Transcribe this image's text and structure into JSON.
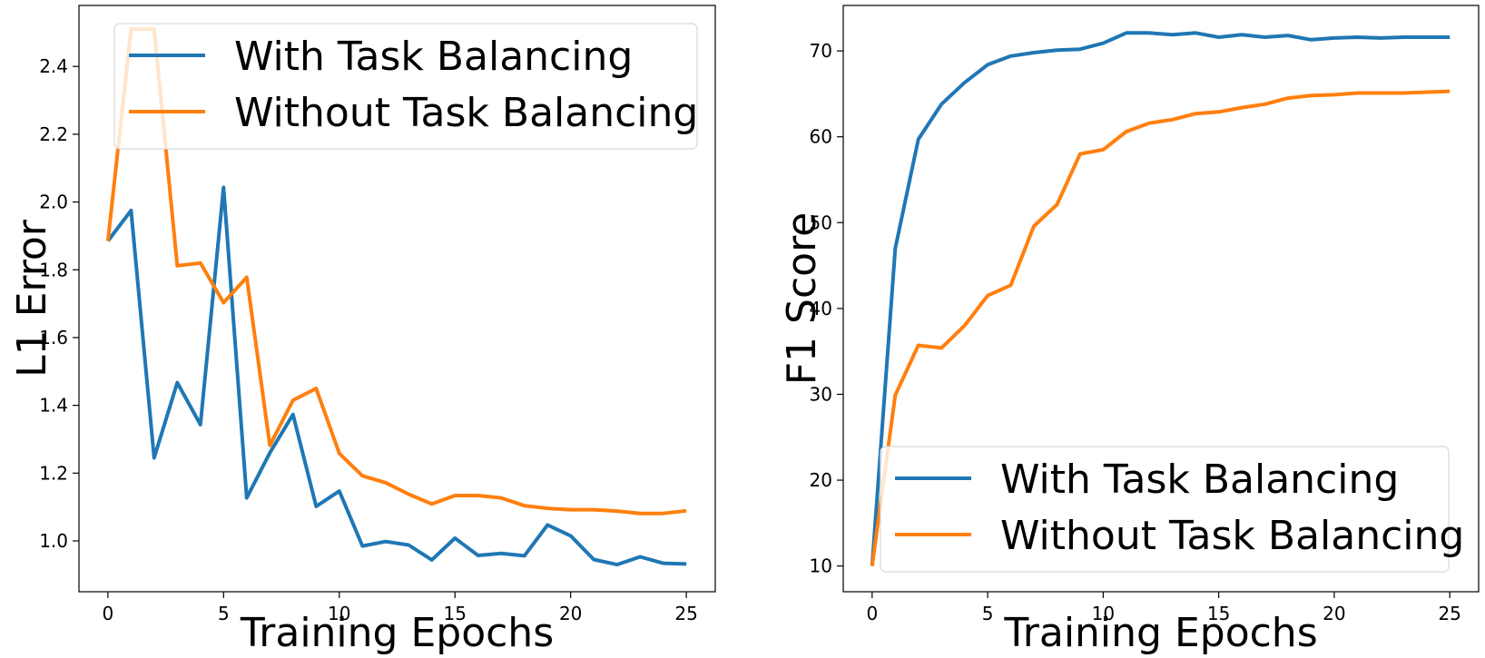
{
  "chart_data": [
    {
      "type": "line",
      "xlabel": "Training Epochs",
      "ylabel": "L1 Error",
      "xlim": [
        -1.25,
        26.25
      ],
      "ylim": [
        0.85,
        2.58
      ],
      "xticks": [
        0,
        5,
        10,
        15,
        20,
        25
      ],
      "yticks": [
        1.0,
        1.2,
        1.4,
        1.6,
        1.8,
        2.0,
        2.2,
        2.4
      ],
      "ytick_labels": [
        "1.0",
        "1.2",
        "1.4",
        "1.6",
        "1.8",
        "2.0",
        "2.2",
        "2.4"
      ],
      "grid": false,
      "legend_position": "top",
      "x": [
        0,
        1,
        2,
        3,
        4,
        5,
        6,
        7,
        8,
        9,
        10,
        11,
        12,
        13,
        14,
        15,
        16,
        17,
        18,
        19,
        20,
        21,
        22,
        23,
        24,
        25
      ],
      "series": [
        {
          "name": "With Task Balancing",
          "color": "#1f77b4",
          "values": [
            1.885,
            1.975,
            1.245,
            1.467,
            1.343,
            2.043,
            1.127,
            1.26,
            1.373,
            1.102,
            1.147,
            0.985,
            0.998,
            0.988,
            0.944,
            1.008,
            0.957,
            0.963,
            0.956,
            1.047,
            1.015,
            0.945,
            0.93,
            0.953,
            0.934,
            0.932
          ]
        },
        {
          "name": "Without Task Balancing",
          "color": "#ff7f0e",
          "values": [
            1.885,
            2.51,
            2.51,
            1.812,
            1.82,
            1.703,
            1.778,
            1.282,
            1.415,
            1.45,
            1.258,
            1.192,
            1.172,
            1.138,
            1.109,
            1.134,
            1.134,
            1.127,
            1.104,
            1.096,
            1.092,
            1.092,
            1.088,
            1.081,
            1.081,
            1.089
          ]
        }
      ]
    },
    {
      "type": "line",
      "xlabel": "Training Epochs",
      "ylabel": "F1 Score",
      "xlim": [
        -1.25,
        26.25
      ],
      "ylim": [
        7,
        75.3
      ],
      "xticks": [
        0,
        5,
        10,
        15,
        20,
        25
      ],
      "yticks": [
        10,
        20,
        30,
        40,
        50,
        60,
        70
      ],
      "ytick_labels": [
        "10",
        "20",
        "30",
        "40",
        "50",
        "60",
        "70"
      ],
      "grid": false,
      "legend_position": "bottom",
      "x": [
        0,
        1,
        2,
        3,
        4,
        5,
        6,
        7,
        8,
        9,
        10,
        11,
        12,
        13,
        14,
        15,
        16,
        17,
        18,
        19,
        20,
        21,
        22,
        23,
        24,
        25
      ],
      "series": [
        {
          "name": "With Task Balancing",
          "color": "#1f77b4",
          "values": [
            10.0,
            47.0,
            59.7,
            63.8,
            66.3,
            68.4,
            69.4,
            69.8,
            70.1,
            70.2,
            70.9,
            72.1,
            72.1,
            71.9,
            72.1,
            71.6,
            71.9,
            71.6,
            71.8,
            71.3,
            71.5,
            71.6,
            71.5,
            71.6,
            71.6,
            71.6
          ]
        },
        {
          "name": "Without Task Balancing",
          "color": "#ff7f0e",
          "values": [
            10.0,
            29.9,
            35.7,
            35.4,
            38.0,
            41.5,
            42.7,
            49.6,
            52.1,
            58.0,
            58.5,
            60.6,
            61.6,
            62.0,
            62.7,
            62.9,
            63.4,
            63.8,
            64.5,
            64.8,
            64.9,
            65.1,
            65.1,
            65.1,
            65.2,
            65.3
          ]
        }
      ]
    }
  ]
}
